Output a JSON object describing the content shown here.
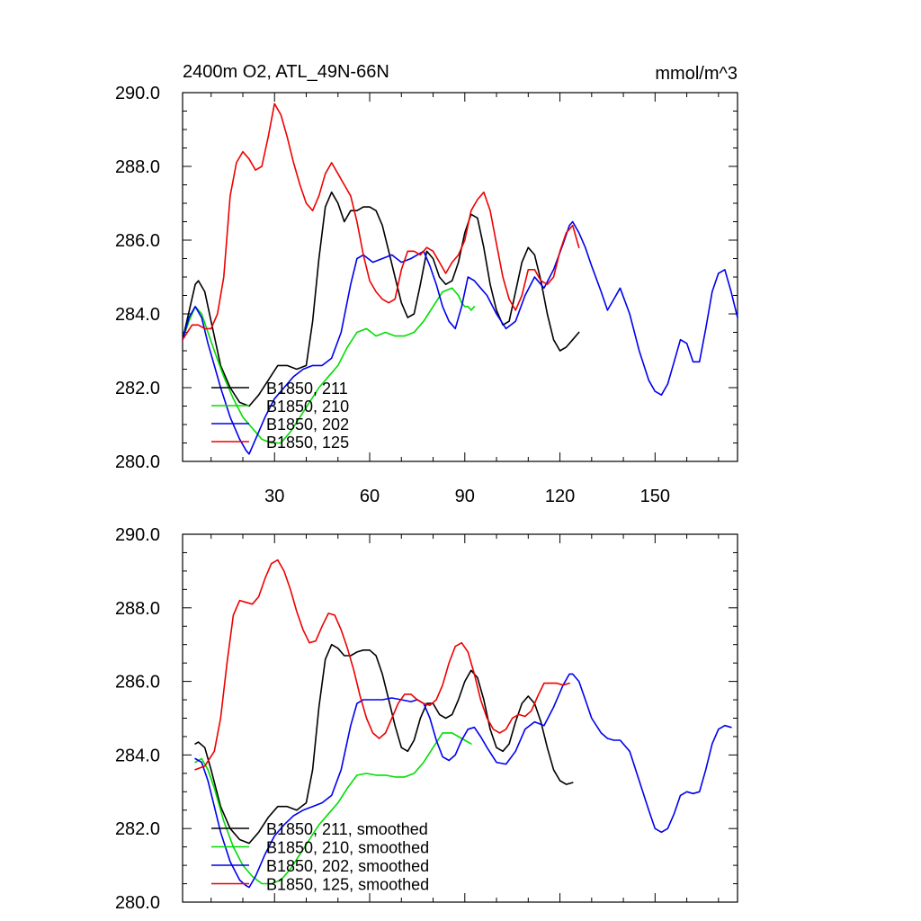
{
  "colors": {
    "black": "#000000",
    "green": "#00dd00",
    "blue": "#0000ee",
    "red": "#ee0000"
  },
  "chart_data": [
    {
      "type": "line",
      "title": "2400m O2, ATL_49N-66N",
      "units": "mmol/m^3",
      "xlim": [
        1,
        176
      ],
      "ylim": [
        280,
        290
      ],
      "xticks": [
        30,
        60,
        90,
        120,
        150
      ],
      "xtick_labels": [
        "30",
        "60",
        "90",
        "120",
        "150"
      ],
      "yticks": [
        280,
        282,
        284,
        286,
        288,
        290
      ],
      "ytick_labels": [
        "280.0",
        "282.0",
        "284.0",
        "286.0",
        "288.0",
        "290.0"
      ],
      "legend_location": "lower-left",
      "series": [
        {
          "name": "B1850, 211",
          "color": "black",
          "x": [
            1,
            5,
            6,
            8,
            10,
            13,
            16,
            19,
            22,
            25,
            28,
            31,
            34,
            37,
            40,
            42,
            44,
            46,
            48,
            50,
            52,
            54,
            56,
            58,
            60,
            62,
            64,
            66,
            68,
            70,
            72,
            74,
            76,
            78,
            80,
            82,
            84,
            86,
            88,
            90,
            92,
            94,
            96,
            98,
            100,
            102,
            104,
            106,
            108,
            110,
            112,
            114,
            116,
            118,
            120,
            122,
            124,
            126
          ],
          "values": [
            283.3,
            284.8,
            284.9,
            284.6,
            283.8,
            282.6,
            282.0,
            281.6,
            281.5,
            281.8,
            282.2,
            282.6,
            282.6,
            282.5,
            282.6,
            283.8,
            285.5,
            286.9,
            287.3,
            287.0,
            286.5,
            286.8,
            286.8,
            286.9,
            286.9,
            286.8,
            286.4,
            285.7,
            285.0,
            284.3,
            283.9,
            284.0,
            284.8,
            285.7,
            285.5,
            285.0,
            284.8,
            284.9,
            285.4,
            286.2,
            286.7,
            286.6,
            285.8,
            284.8,
            284.1,
            283.7,
            283.8,
            284.6,
            285.4,
            285.8,
            285.6,
            284.9,
            284.0,
            283.3,
            283.0,
            283.1,
            283.3,
            283.5
          ]
        },
        {
          "name": "B1850, 210",
          "color": "green",
          "x": [
            1,
            3,
            5,
            7,
            9,
            11,
            14,
            17,
            20,
            23,
            26,
            29,
            32,
            35,
            38,
            41,
            44,
            47,
            50,
            53,
            56,
            59,
            62,
            65,
            68,
            71,
            74,
            77,
            80,
            83,
            86,
            88,
            89,
            90,
            91,
            92,
            93
          ],
          "values": [
            283.3,
            283.8,
            284.2,
            284.0,
            283.5,
            283.0,
            282.3,
            281.7,
            281.2,
            280.9,
            280.6,
            280.5,
            280.5,
            280.8,
            281.2,
            281.6,
            282.0,
            282.3,
            282.6,
            283.1,
            283.5,
            283.6,
            283.4,
            283.5,
            283.4,
            283.4,
            283.5,
            283.8,
            284.2,
            284.6,
            284.7,
            284.5,
            284.3,
            284.2,
            284.2,
            284.1,
            284.2
          ]
        },
        {
          "name": "B1850, 202",
          "color": "blue",
          "x": [
            1,
            3,
            5,
            7,
            9,
            11,
            13,
            16,
            19,
            21,
            22,
            24,
            27,
            30,
            33,
            36,
            39,
            42,
            45,
            48,
            51,
            54,
            56,
            58,
            61,
            64,
            67,
            70,
            73,
            75,
            77,
            79,
            81,
            83,
            85,
            87,
            89,
            91,
            93,
            95,
            97,
            100,
            103,
            106,
            109,
            112,
            115,
            118,
            121,
            123,
            124,
            126,
            128,
            130,
            133,
            135,
            137,
            139,
            142,
            145,
            148,
            150,
            152,
            154,
            156,
            158,
            160,
            162,
            164,
            166,
            168,
            170,
            172,
            174,
            176
          ],
          "values": [
            283.3,
            283.9,
            284.2,
            283.9,
            283.2,
            282.6,
            282.0,
            281.2,
            280.6,
            280.3,
            280.2,
            280.6,
            281.2,
            281.7,
            282.0,
            282.3,
            282.5,
            282.6,
            282.6,
            282.8,
            283.5,
            284.8,
            285.5,
            285.6,
            285.4,
            285.5,
            285.6,
            285.4,
            285.5,
            285.6,
            285.7,
            285.3,
            284.8,
            284.2,
            283.8,
            283.6,
            284.2,
            285.0,
            284.9,
            284.7,
            284.5,
            284.0,
            283.6,
            283.8,
            284.5,
            285.0,
            284.7,
            285.2,
            285.9,
            286.4,
            286.5,
            286.2,
            285.8,
            285.3,
            284.6,
            284.1,
            284.4,
            284.7,
            284.0,
            283.0,
            282.2,
            281.9,
            281.8,
            282.1,
            282.7,
            283.3,
            283.2,
            282.7,
            282.7,
            283.6,
            284.6,
            285.1,
            285.2,
            284.6,
            283.9
          ]
        },
        {
          "name": "B1850, 125",
          "color": "red",
          "x": [
            1,
            4,
            6,
            8,
            10,
            12,
            14,
            16,
            18,
            20,
            22,
            24,
            26,
            28,
            30,
            32,
            34,
            36,
            38,
            40,
            42,
            44,
            46,
            48,
            50,
            52,
            54,
            56,
            58,
            60,
            62,
            64,
            66,
            68,
            70,
            72,
            74,
            76,
            78,
            80,
            82,
            84,
            86,
            88,
            90,
            92,
            94,
            96,
            98,
            100,
            102,
            104,
            106,
            108,
            110,
            112,
            114,
            116,
            118,
            120,
            122,
            124,
            126
          ],
          "values": [
            283.3,
            283.7,
            283.7,
            283.6,
            283.6,
            284.0,
            285.0,
            287.2,
            288.1,
            288.4,
            288.2,
            287.9,
            288.0,
            288.8,
            289.7,
            289.4,
            288.8,
            288.1,
            287.5,
            287.0,
            286.8,
            287.2,
            287.8,
            288.1,
            287.8,
            287.5,
            287.2,
            286.5,
            285.6,
            284.9,
            284.6,
            284.4,
            284.3,
            284.4,
            285.2,
            285.7,
            285.7,
            285.6,
            285.8,
            285.7,
            285.4,
            285.1,
            285.4,
            285.6,
            286.0,
            286.8,
            287.1,
            287.3,
            286.8,
            285.9,
            285.0,
            284.4,
            284.1,
            284.5,
            285.2,
            285.2,
            284.9,
            284.8,
            285.0,
            285.7,
            286.2,
            286.4,
            285.8
          ]
        }
      ]
    },
    {
      "type": "line",
      "title": "",
      "xlim": [
        1,
        176
      ],
      "ylim": [
        280,
        290
      ],
      "xticks": [
        30,
        60,
        90,
        120,
        150
      ],
      "yticks": [
        280,
        282,
        284,
        286,
        288,
        290
      ],
      "ytick_labels": [
        "280.0",
        "282.0",
        "284.0",
        "286.0",
        "288.0",
        "290.0"
      ],
      "legend_location": "lower-left",
      "series": [
        {
          "name": "B1850, 211, smoothed",
          "color": "black",
          "x": [
            5,
            6,
            8,
            10,
            13,
            16,
            19,
            22,
            25,
            28,
            31,
            34,
            37,
            40,
            42,
            44,
            46,
            48,
            50,
            52,
            54,
            56,
            58,
            60,
            62,
            64,
            66,
            68,
            70,
            72,
            74,
            76,
            78,
            80,
            82,
            84,
            86,
            88,
            90,
            92,
            94,
            96,
            98,
            100,
            102,
            104,
            106,
            108,
            110,
            112,
            114,
            116,
            118,
            120,
            122,
            124
          ],
          "values": [
            284.3,
            284.35,
            284.2,
            283.6,
            282.6,
            282.0,
            281.7,
            281.6,
            281.9,
            282.3,
            282.6,
            282.6,
            282.5,
            282.7,
            283.6,
            285.3,
            286.6,
            287.0,
            286.9,
            286.7,
            286.7,
            286.8,
            286.85,
            286.85,
            286.7,
            286.2,
            285.5,
            284.8,
            284.2,
            284.1,
            284.4,
            285.0,
            285.4,
            285.4,
            285.1,
            285.0,
            285.1,
            285.5,
            286.0,
            286.3,
            286.1,
            285.5,
            284.7,
            284.2,
            284.1,
            284.3,
            284.9,
            285.4,
            285.6,
            285.4,
            284.9,
            284.2,
            283.6,
            283.3,
            283.2,
            283.25
          ]
        },
        {
          "name": "B1850, 210, smoothed",
          "color": "green",
          "x": [
            5,
            7,
            9,
            11,
            14,
            17,
            20,
            23,
            26,
            29,
            32,
            35,
            38,
            41,
            44,
            47,
            50,
            53,
            56,
            59,
            62,
            65,
            68,
            71,
            74,
            77,
            80,
            83,
            86,
            88,
            90,
            92
          ],
          "values": [
            283.8,
            283.9,
            283.6,
            283.1,
            282.2,
            281.5,
            281.0,
            280.7,
            280.5,
            280.5,
            280.6,
            280.9,
            281.3,
            281.7,
            282.1,
            282.4,
            282.7,
            283.1,
            283.45,
            283.5,
            283.45,
            283.45,
            283.4,
            283.4,
            283.5,
            283.8,
            284.2,
            284.6,
            284.6,
            284.5,
            284.4,
            284.3
          ]
        },
        {
          "name": "B1850, 202, smoothed",
          "color": "blue",
          "x": [
            5,
            7,
            9,
            11,
            13,
            16,
            19,
            21,
            22,
            24,
            27,
            30,
            33,
            36,
            39,
            42,
            45,
            48,
            51,
            54,
            56,
            58,
            61,
            64,
            67,
            70,
            73,
            75,
            77,
            79,
            81,
            83,
            85,
            87,
            89,
            91,
            93,
            95,
            97,
            100,
            103,
            106,
            109,
            112,
            115,
            118,
            121,
            123,
            124,
            126,
            128,
            130,
            133,
            135,
            137,
            139,
            142,
            145,
            148,
            150,
            152,
            154,
            156,
            158,
            160,
            162,
            164,
            166,
            168,
            170,
            172,
            174
          ],
          "values": [
            283.9,
            283.8,
            283.3,
            282.6,
            281.9,
            281.1,
            280.6,
            280.45,
            280.4,
            280.7,
            281.3,
            281.8,
            282.1,
            282.35,
            282.5,
            282.6,
            282.7,
            282.9,
            283.6,
            284.8,
            285.4,
            285.5,
            285.5,
            285.5,
            285.55,
            285.5,
            285.45,
            285.5,
            285.4,
            285.0,
            284.4,
            283.95,
            283.85,
            284.0,
            284.4,
            284.7,
            284.75,
            284.5,
            284.2,
            283.8,
            283.75,
            284.1,
            284.7,
            284.9,
            284.8,
            285.3,
            285.9,
            286.2,
            286.2,
            286.0,
            285.5,
            285.0,
            284.6,
            284.45,
            284.4,
            284.4,
            284.1,
            283.3,
            282.5,
            282.0,
            281.9,
            282.0,
            282.4,
            282.9,
            283.0,
            282.95,
            283.0,
            283.6,
            284.3,
            284.7,
            284.8,
            284.75
          ]
        },
        {
          "name": "B1850, 125, smoothed",
          "color": "red",
          "x": [
            5,
            8,
            11,
            13,
            15,
            17,
            19,
            21,
            23,
            25,
            27,
            29,
            31,
            33,
            35,
            37,
            39,
            41,
            43,
            45,
            47,
            49,
            51,
            53,
            55,
            57,
            59,
            61,
            63,
            65,
            67,
            69,
            71,
            73,
            75,
            77,
            79,
            81,
            83,
            85,
            87,
            89,
            91,
            93,
            95,
            97,
            99,
            101,
            103,
            105,
            107,
            109,
            111,
            113,
            115,
            117,
            119,
            121,
            123
          ],
          "values": [
            283.6,
            283.7,
            284.1,
            285.0,
            286.5,
            287.8,
            288.2,
            288.15,
            288.1,
            288.3,
            288.8,
            289.2,
            289.3,
            289.0,
            288.5,
            287.9,
            287.4,
            287.05,
            287.1,
            287.5,
            287.85,
            287.8,
            287.4,
            286.9,
            286.3,
            285.6,
            285.0,
            284.6,
            284.45,
            284.6,
            285.0,
            285.4,
            285.65,
            285.65,
            285.5,
            285.4,
            285.35,
            285.5,
            285.9,
            286.5,
            286.95,
            287.05,
            286.8,
            286.2,
            285.5,
            285.0,
            284.7,
            284.6,
            284.7,
            285.0,
            285.1,
            285.05,
            285.2,
            285.6,
            285.95,
            285.95,
            285.95,
            285.9,
            285.95
          ]
        }
      ]
    }
  ]
}
